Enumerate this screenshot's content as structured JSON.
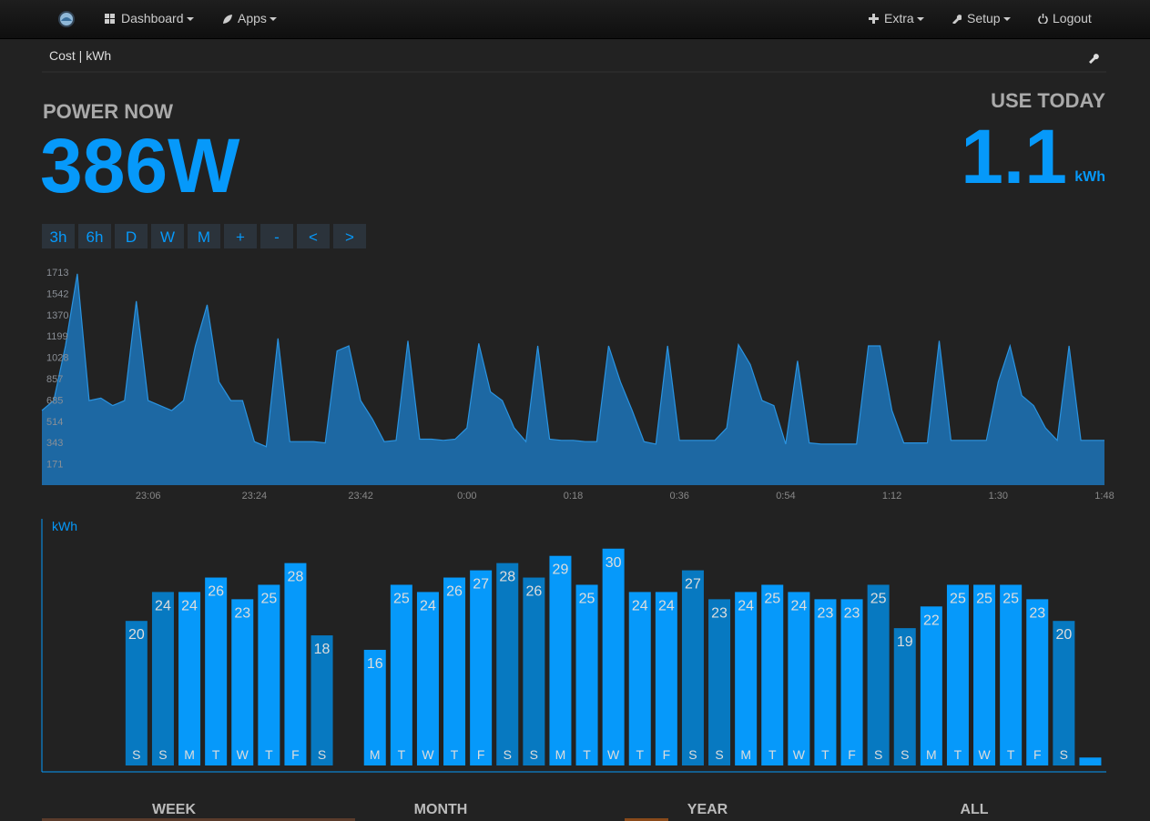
{
  "nav": {
    "items": [
      "Dashboard",
      "Apps",
      "Extra",
      "Setup",
      "Logout"
    ]
  },
  "page_title": "Cost | kWh",
  "power_now": {
    "label": "POWER NOW",
    "value": "386W"
  },
  "use_today": {
    "label": "USE TODAY",
    "value": "1.1",
    "unit": "kWh"
  },
  "range_buttons": [
    "3h",
    "6h",
    "D",
    "W",
    "M",
    "+",
    "-",
    "<",
    ">"
  ],
  "power_chart": {
    "type": "area",
    "x": [
      "22:48",
      "22:50",
      "22:52",
      "22:54",
      "22:56",
      "22:58",
      "23:00",
      "23:02",
      "23:04",
      "23:06",
      "23:08",
      "23:10",
      "23:12",
      "23:14",
      "23:16",
      "23:18",
      "23:20",
      "23:22",
      "23:24",
      "23:26",
      "23:28",
      "23:30",
      "23:32",
      "23:34",
      "23:36",
      "23:38",
      "23:40",
      "23:42",
      "23:44",
      "23:46",
      "23:48",
      "23:50",
      "23:52",
      "23:54",
      "23:56",
      "23:58",
      "0:00",
      "0:02",
      "0:04",
      "0:06",
      "0:08",
      "0:10",
      "0:12",
      "0:14",
      "0:16",
      "0:18",
      "0:20",
      "0:22",
      "0:24",
      "0:26",
      "0:28",
      "0:30",
      "0:32",
      "0:34",
      "0:36",
      "0:38",
      "0:40",
      "0:42",
      "0:44",
      "0:46",
      "0:48",
      "0:50",
      "0:52",
      "0:54",
      "0:56",
      "0:58",
      "1:00",
      "1:02",
      "1:04",
      "1:06",
      "1:08",
      "1:10",
      "1:12",
      "1:14",
      "1:16",
      "1:18",
      "1:20",
      "1:22",
      "1:24",
      "1:26",
      "1:28",
      "1:30",
      "1:32",
      "1:34",
      "1:36",
      "1:38",
      "1:40",
      "1:42",
      "1:44",
      "1:46",
      "1:48"
    ],
    "values": [
      600,
      680,
      1120,
      1700,
      680,
      700,
      640,
      680,
      1480,
      680,
      640,
      600,
      680,
      1120,
      1450,
      830,
      680,
      680,
      350,
      310,
      1180,
      350,
      350,
      350,
      340,
      1080,
      1120,
      680,
      530,
      350,
      360,
      1160,
      370,
      370,
      360,
      370,
      460,
      1140,
      750,
      680,
      460,
      350,
      1120,
      370,
      360,
      360,
      350,
      350,
      1120,
      830,
      600,
      350,
      330,
      1120,
      360,
      360,
      360,
      360,
      460,
      1130,
      970,
      680,
      640,
      330,
      1000,
      340,
      330,
      330,
      330,
      330,
      1120,
      1120,
      600,
      340,
      340,
      340,
      1160,
      360,
      360,
      360,
      360,
      830,
      1120,
      720,
      640,
      460,
      360,
      1120,
      360,
      360,
      360
    ],
    "xticks": [
      "23:06",
      "23:24",
      "23:42",
      "0:00",
      "0:18",
      "0:36",
      "0:54",
      "1:12",
      "1:30",
      "1:48"
    ],
    "yticks": [
      171,
      343,
      514,
      685,
      857,
      1028,
      1199,
      1370,
      1542,
      1713
    ],
    "ylim": [
      0,
      1713
    ],
    "color": "#1d68a3",
    "line_color": "#2a93e0"
  },
  "kwh_chart": {
    "type": "bar",
    "ylabel": "kWh",
    "categories": [
      null,
      null,
      null,
      "S",
      "S",
      "M",
      "T",
      "W",
      "T",
      "F",
      "S",
      null,
      "M",
      "T",
      "W",
      "T",
      "F",
      "S",
      "S",
      "M",
      "T",
      "W",
      "T",
      "F",
      "S",
      "S",
      "M",
      "T",
      "W",
      "T",
      "F",
      "S",
      "S",
      "M",
      "T",
      "W",
      "T",
      "F",
      "S",
      null
    ],
    "values": [
      null,
      null,
      null,
      20,
      24,
      24,
      26,
      23,
      25,
      28,
      18,
      null,
      16,
      25,
      24,
      26,
      27,
      28,
      26,
      29,
      25,
      30,
      24,
      24,
      27,
      23,
      24,
      25,
      24,
      23,
      23,
      25,
      19,
      22,
      25,
      25,
      25,
      23,
      20,
      1.1
    ],
    "colors": [
      null,
      null,
      null,
      "#0779c1",
      "#0779c1",
      "#0699fa",
      "#0699fa",
      "#0699fa",
      "#0699fa",
      "#0699fa",
      "#0779c1",
      null,
      "#0699fa",
      "#0699fa",
      "#0699fa",
      "#0699fa",
      "#0699fa",
      "#0779c1",
      "#0779c1",
      "#0699fa",
      "#0699fa",
      "#0699fa",
      "#0699fa",
      "#0699fa",
      "#0779c1",
      "#0779c1",
      "#0699fa",
      "#0699fa",
      "#0699fa",
      "#0699fa",
      "#0699fa",
      "#0779c1",
      "#0779c1",
      "#0699fa",
      "#0699fa",
      "#0699fa",
      "#0699fa",
      "#0699fa",
      "#0779c1",
      "#0699fa"
    ],
    "ylim": [
      0,
      34
    ]
  },
  "tabs": [
    "WEEK",
    "MONTH",
    "YEAR",
    "ALL"
  ]
}
